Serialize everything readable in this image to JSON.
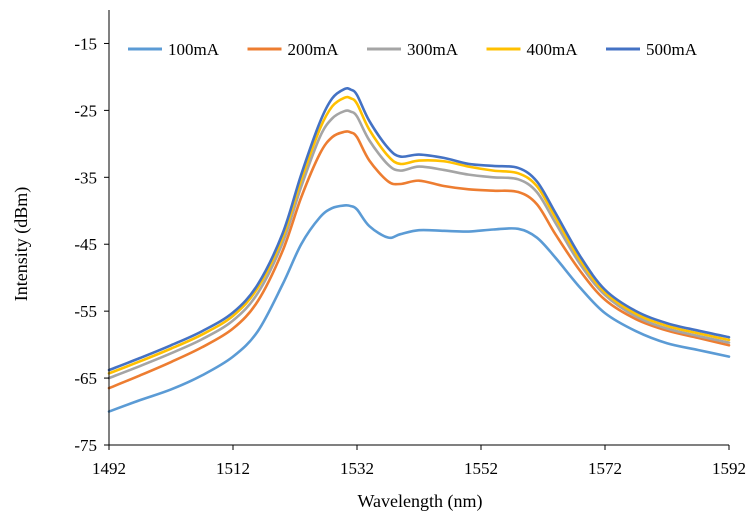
{
  "chart_data": {
    "type": "line",
    "title": "",
    "xlabel": "Wavelength (nm)",
    "ylabel": "Intensity (dBm)",
    "xlim": [
      1492,
      1592
    ],
    "ylim": [
      -75,
      -10
    ],
    "xticks": [
      1492,
      1512,
      1532,
      1552,
      1572,
      1592
    ],
    "yticks": [
      -15,
      -25,
      -35,
      -45,
      -55,
      -65,
      -75
    ],
    "grid": false,
    "legend_position": "top",
    "series": [
      {
        "name": "100mA",
        "color": "#5B9BD5",
        "x": [
          1492,
          1497,
          1502,
          1507,
          1512,
          1516,
          1520,
          1523,
          1526,
          1528,
          1530,
          1531,
          1532,
          1534,
          1537,
          1539,
          1542,
          1546,
          1550,
          1554,
          1558,
          1561,
          1564,
          1568,
          1572,
          1577,
          1582,
          1587,
          1592
        ],
        "y": [
          -70.0,
          -68.3,
          -66.7,
          -64.6,
          -61.8,
          -58.0,
          -51.0,
          -45.0,
          -41.0,
          -39.6,
          -39.2,
          -39.3,
          -39.8,
          -42.3,
          -44.0,
          -43.5,
          -42.9,
          -43.0,
          -43.1,
          -42.8,
          -42.7,
          -44.0,
          -47.0,
          -51.5,
          -55.3,
          -58.0,
          -59.8,
          -60.8,
          -61.8
        ]
      },
      {
        "name": "200mA",
        "color": "#ED7D31",
        "x": [
          1492,
          1497,
          1502,
          1507,
          1512,
          1516,
          1520,
          1523,
          1526,
          1528,
          1530,
          1531,
          1532,
          1534,
          1537,
          1539,
          1542,
          1546,
          1550,
          1554,
          1558,
          1561,
          1564,
          1568,
          1572,
          1577,
          1582,
          1587,
          1592
        ],
        "y": [
          -66.5,
          -64.6,
          -62.6,
          -60.4,
          -57.6,
          -53.5,
          -46.0,
          -38.0,
          -31.5,
          -29.0,
          -28.2,
          -28.3,
          -29.0,
          -32.5,
          -35.6,
          -36.0,
          -35.5,
          -36.3,
          -36.8,
          -37.0,
          -37.2,
          -39.0,
          -43.5,
          -49.0,
          -53.3,
          -56.2,
          -57.9,
          -59.0,
          -60.1
        ]
      },
      {
        "name": "300mA",
        "color": "#A5A5A5",
        "x": [
          1492,
          1497,
          1502,
          1507,
          1512,
          1516,
          1520,
          1523,
          1526,
          1528,
          1530,
          1531,
          1532,
          1534,
          1537,
          1539,
          1542,
          1546,
          1550,
          1554,
          1558,
          1561,
          1564,
          1568,
          1572,
          1577,
          1582,
          1587,
          1592
        ],
        "y": [
          -65.0,
          -63.2,
          -61.3,
          -59.2,
          -56.4,
          -52.3,
          -44.8,
          -36.4,
          -29.0,
          -26.2,
          -25.1,
          -25.2,
          -25.9,
          -29.5,
          -33.1,
          -34.0,
          -33.4,
          -33.9,
          -34.6,
          -35.0,
          -35.3,
          -37.2,
          -41.8,
          -48.0,
          -52.6,
          -55.8,
          -57.6,
          -58.7,
          -59.7
        ]
      },
      {
        "name": "400mA",
        "color": "#FFC000",
        "x": [
          1492,
          1497,
          1502,
          1507,
          1512,
          1516,
          1520,
          1523,
          1526,
          1528,
          1530,
          1531,
          1532,
          1534,
          1537,
          1539,
          1542,
          1546,
          1550,
          1554,
          1558,
          1561,
          1564,
          1568,
          1572,
          1577,
          1582,
          1587,
          1592
        ],
        "y": [
          -64.3,
          -62.5,
          -60.6,
          -58.5,
          -55.7,
          -51.5,
          -44.0,
          -35.4,
          -27.8,
          -24.4,
          -23.1,
          -23.2,
          -24.0,
          -27.9,
          -31.8,
          -33.0,
          -32.5,
          -32.6,
          -33.4,
          -34.0,
          -34.4,
          -36.3,
          -41.0,
          -47.4,
          -52.2,
          -55.4,
          -57.2,
          -58.3,
          -59.3
        ]
      },
      {
        "name": "500mA",
        "color": "#4472C4",
        "x": [
          1492,
          1497,
          1502,
          1507,
          1512,
          1516,
          1520,
          1523,
          1526,
          1528,
          1530,
          1531,
          1532,
          1534,
          1537,
          1539,
          1542,
          1546,
          1550,
          1554,
          1558,
          1561,
          1564,
          1568,
          1572,
          1577,
          1582,
          1587,
          1592
        ],
        "y": [
          -63.8,
          -62.0,
          -60.1,
          -58.0,
          -55.2,
          -51.0,
          -43.4,
          -34.6,
          -26.8,
          -23.2,
          -21.8,
          -21.9,
          -22.7,
          -26.6,
          -30.6,
          -31.9,
          -31.6,
          -32.1,
          -33.0,
          -33.3,
          -33.6,
          -35.6,
          -40.3,
          -46.8,
          -51.8,
          -55.0,
          -56.8,
          -57.9,
          -58.9
        ]
      }
    ]
  }
}
